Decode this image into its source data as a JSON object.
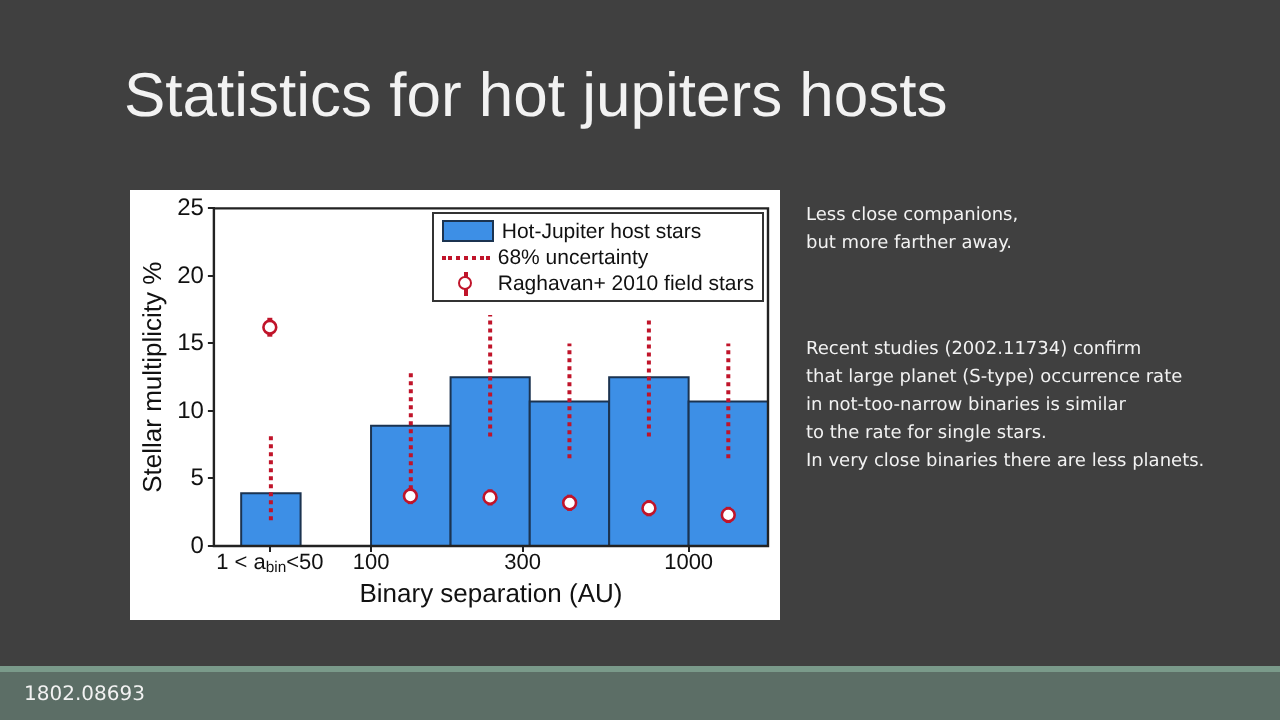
{
  "chart_data": {
    "type": "histogram",
    "title": "Statistics for hot jupiters hosts",
    "xlabel": "Binary separation (AU)",
    "ylabel": "Stellar multiplicity %",
    "log": "x",
    "xlim": [
      32,
      1778
    ],
    "xticks": [
      {
        "value": 48,
        "label": "1 < a$_{bin}$<50"
      },
      100,
      300,
      1000
    ],
    "ylim": [
      0,
      25
    ],
    "yticks": [
      0,
      5,
      10,
      15,
      20,
      25
    ],
    "grid": false,
    "legend": "top right",
    "series": [
      {
        "name": "Hot-Jupiter host stars",
        "color": "#3d8fe6",
        "bins": [
          39,
          60,
          100,
          178,
          316,
          562,
          1000,
          1778
        ],
        "values": [
          3.9,
          null,
          8.9,
          12.5,
          10.7,
          12.5,
          10.7
        ],
        "errors": [
          [
            1.9,
            8.2
          ],
          null,
          [
            4.2,
            13.0
          ],
          [
            8.1,
            17.1
          ],
          [
            6.5,
            15.0
          ],
          [
            8.1,
            16.7
          ],
          [
            6.5,
            15.0
          ]
        ]
      },
      {
        "type": "scatter",
        "name": "Raghavan+ 2010 field stars",
        "color": "#c0142a",
        "marker": "circle",
        "x": [
          48,
          133,
          237,
          422,
          750,
          1333
        ],
        "values": [
          16.2,
          3.7,
          3.6,
          3.2,
          2.8,
          2.3
        ],
        "errors": [
          0.7,
          0.6,
          0.6,
          0.6,
          0.6,
          0.6
        ]
      }
    ],
    "annotations": [
      "68% uncertainty",
      "Less close companions,\nbut more farther away.",
      "Recent studies (2002.11734) confirm\nthat large planet (S-type) occurrence rate\nin not-too-narrow binaries is similar\nto the rate for single stars.\nIn very close binaries there are less planets.",
      "1802.08693"
    ]
  }
}
